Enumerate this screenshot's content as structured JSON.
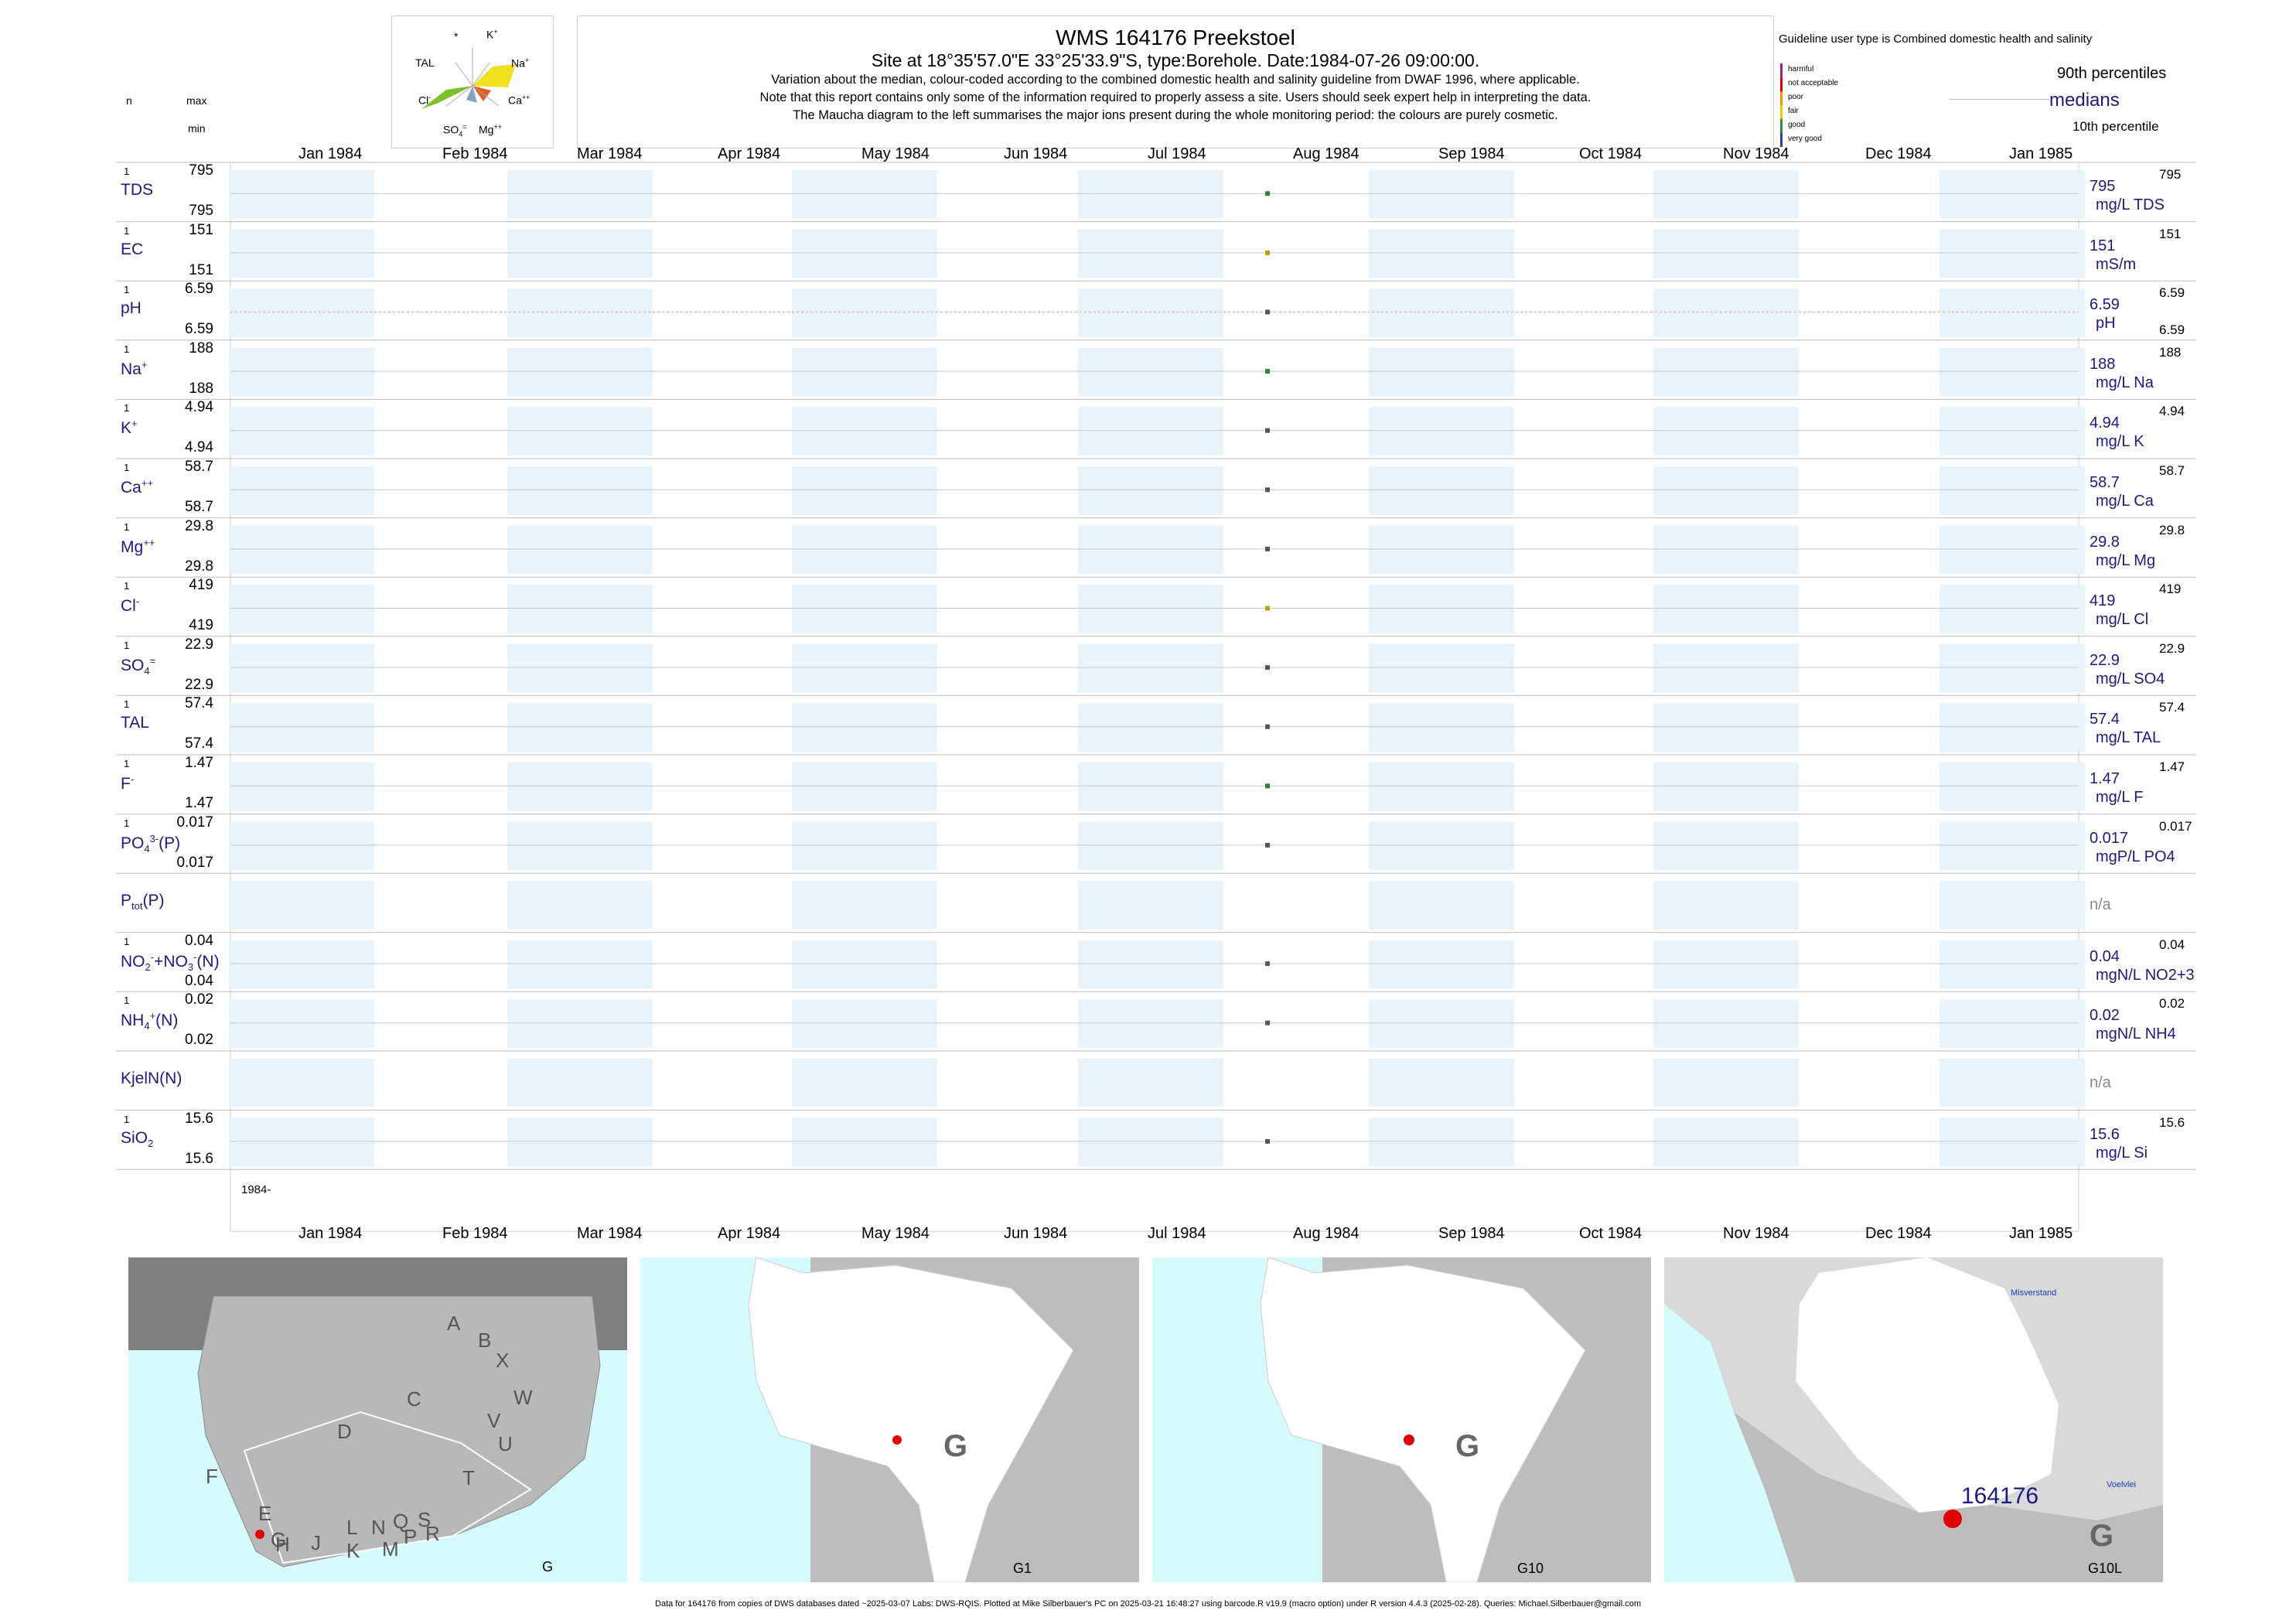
{
  "header": {
    "title": "WMS 164176  Preekstoel",
    "site_line": "Site at 18°35'57.0\"E 33°25'33.9\"S, type:Borehole. Date:1984-07-26 09:00:00.",
    "note1": "Variation about the median,  colour-coded according to the combined domestic health and salinity guideline from DWAF 1996, where applicable.",
    "note2": "Note that this report contains only some of the information required to properly assess a site. Users should seek expert help in interpreting the data.",
    "note3": "The Maucha diagram to the left summarises the major ions present during the whole monitoring period: the colours are purely cosmetic.",
    "n_label": "n",
    "max_label": "max",
    "min_label": "min"
  },
  "maucha": {
    "labels": {
      "star": "*",
      "k": "K",
      "na": "Na",
      "ca": "Ca",
      "mg": "Mg",
      "so4": "SO",
      "cl": "Cl",
      "tal": "TAL"
    }
  },
  "legend": {
    "guideline": "Guideline user type is Combined domestic health and salinity",
    "classes": [
      "harmful",
      "not acceptable",
      "poor",
      "fair",
      "good",
      "very good"
    ],
    "class_colors": [
      "#a0207c",
      "#e00000",
      "#ff8c00",
      "#e8c800",
      "#2e8b3a",
      "#2a3cb0"
    ],
    "p90": "90th percentiles",
    "medians": "medians",
    "p10": "10th percentile"
  },
  "axis": {
    "months": [
      "Jan 1984",
      "Feb 1984",
      "Mar 1984",
      "Apr 1984",
      "May 1984",
      "Jun 1984",
      "Jul 1984",
      "Aug 1984",
      "Sep 1984",
      "Oct 1984",
      "Nov 1984",
      "Dec 1984",
      "Jan 1985"
    ],
    "year_label": "1984-"
  },
  "chart_data": {
    "type": "scatter",
    "x_range": [
      "1984-01-01",
      "1985-01-01"
    ],
    "sample_date": "1984-07-26",
    "rows": [
      {
        "param": "TDS",
        "n": "1",
        "max": "795",
        "min": "795",
        "median": "795",
        "unit": "mg/L TDS",
        "p90": "795",
        "p10": "",
        "value": 795,
        "class": "good"
      },
      {
        "param": "EC",
        "n": "1",
        "max": "151",
        "min": "151",
        "median": "151",
        "unit": "mS/m",
        "p90": "151",
        "p10": "",
        "value": 151,
        "class": "fair"
      },
      {
        "param": "pH",
        "n": "1",
        "max": "6.59",
        "min": "6.59",
        "median": "6.59",
        "unit": "pH",
        "p90": "6.59",
        "p10": "6.59",
        "value": 6.59,
        "class": "none"
      },
      {
        "param": "Na",
        "n": "1",
        "max": "188",
        "min": "188",
        "median": "188",
        "unit": "mg/L Na",
        "p90": "188",
        "p10": "",
        "value": 188,
        "class": "good"
      },
      {
        "param": "K",
        "n": "1",
        "max": "4.94",
        "min": "4.94",
        "median": "4.94",
        "unit": "mg/L K",
        "p90": "4.94",
        "p10": "",
        "value": 4.94,
        "class": "none"
      },
      {
        "param": "Ca",
        "n": "1",
        "max": "58.7",
        "min": "58.7",
        "median": "58.7",
        "unit": "mg/L Ca",
        "p90": "58.7",
        "p10": "",
        "value": 58.7,
        "class": "none"
      },
      {
        "param": "Mg",
        "n": "1",
        "max": "29.8",
        "min": "29.8",
        "median": "29.8",
        "unit": "mg/L Mg",
        "p90": "29.8",
        "p10": "",
        "value": 29.8,
        "class": "none"
      },
      {
        "param": "Cl",
        "n": "1",
        "max": "419",
        "min": "419",
        "median": "419",
        "unit": "mg/L Cl",
        "p90": "419",
        "p10": "",
        "value": 419,
        "class": "fair"
      },
      {
        "param": "SO4",
        "n": "1",
        "max": "22.9",
        "min": "22.9",
        "median": "22.9",
        "unit": "mg/L SO4",
        "p90": "22.9",
        "p10": "",
        "value": 22.9,
        "class": "none"
      },
      {
        "param": "TAL",
        "n": "1",
        "max": "57.4",
        "min": "57.4",
        "median": "57.4",
        "unit": "mg/L TAL",
        "p90": "57.4",
        "p10": "",
        "value": 57.4,
        "class": "none"
      },
      {
        "param": "F",
        "n": "1",
        "max": "1.47",
        "min": "1.47",
        "median": "1.47",
        "unit": "mg/L F",
        "p90": "1.47",
        "p10": "",
        "value": 1.47,
        "class": "good"
      },
      {
        "param": "PO4(P)",
        "n": "1",
        "max": "0.017",
        "min": "0.017",
        "median": "0.017",
        "unit": "mgP/L PO4",
        "p90": "0.017",
        "p10": "",
        "value": 0.017,
        "class": "none"
      },
      {
        "param": "Ptot(P)",
        "n": "",
        "max": "",
        "min": "",
        "median": "n/a",
        "unit": "",
        "p90": "",
        "p10": "",
        "value": null,
        "class": "none"
      },
      {
        "param": "NO2+NO3(N)",
        "n": "1",
        "max": "0.04",
        "min": "0.04",
        "median": "0.04",
        "unit": "mgN/L NO2+3",
        "p90": "0.04",
        "p10": "",
        "value": 0.04,
        "class": "none"
      },
      {
        "param": "NH4(N)",
        "n": "1",
        "max": "0.02",
        "min": "0.02",
        "median": "0.02",
        "unit": "mgN/L NH4",
        "p90": "0.02",
        "p10": "",
        "value": 0.02,
        "class": "none"
      },
      {
        "param": "KjelN(N)",
        "n": "",
        "max": "",
        "min": "",
        "median": "n/a",
        "unit": "",
        "p90": "",
        "p10": "",
        "value": null,
        "class": "none"
      },
      {
        "param": "SiO2",
        "n": "1",
        "max": "15.6",
        "min": "15.6",
        "median": "15.6",
        "unit": "mg/L Si",
        "p90": "15.6",
        "p10": "",
        "value": 15.6,
        "class": "none"
      }
    ]
  },
  "maps": {
    "map1": {
      "caption": "G",
      "region_letters": [
        "A",
        "B",
        "X",
        "W",
        "C",
        "V",
        "U",
        "D",
        "T",
        "F",
        "E",
        "G",
        "H",
        "J",
        "K",
        "L",
        "N",
        "M",
        "Q",
        "P",
        "S",
        "R"
      ]
    },
    "map2": {
      "caption": "G1",
      "big_letter": "G"
    },
    "map3": {
      "caption": "G10",
      "big_letter": "G"
    },
    "map4": {
      "caption": "G10L",
      "big_letter": "G",
      "site_label": "164176",
      "town1": "Misverstand",
      "town2": "Voelvlei"
    }
  },
  "footer": "Data for 164176 from copies of DWS databases dated ~2025-03-07 Labs: DWS-RQIS. Plotted at Mike Silberbauer's PC on 2025-03-21 16:48:27 using barcode.R v19.9 (macro option) under R version 4.4.3 (2025-02-28). Queries: Michael.Silberbauer@gmail.com",
  "colors": {
    "band": "#e8f3fc",
    "good": "#2e7d3a",
    "fair": "#b8a000",
    "none": "#555555",
    "text_dark": "#1a1a80"
  }
}
